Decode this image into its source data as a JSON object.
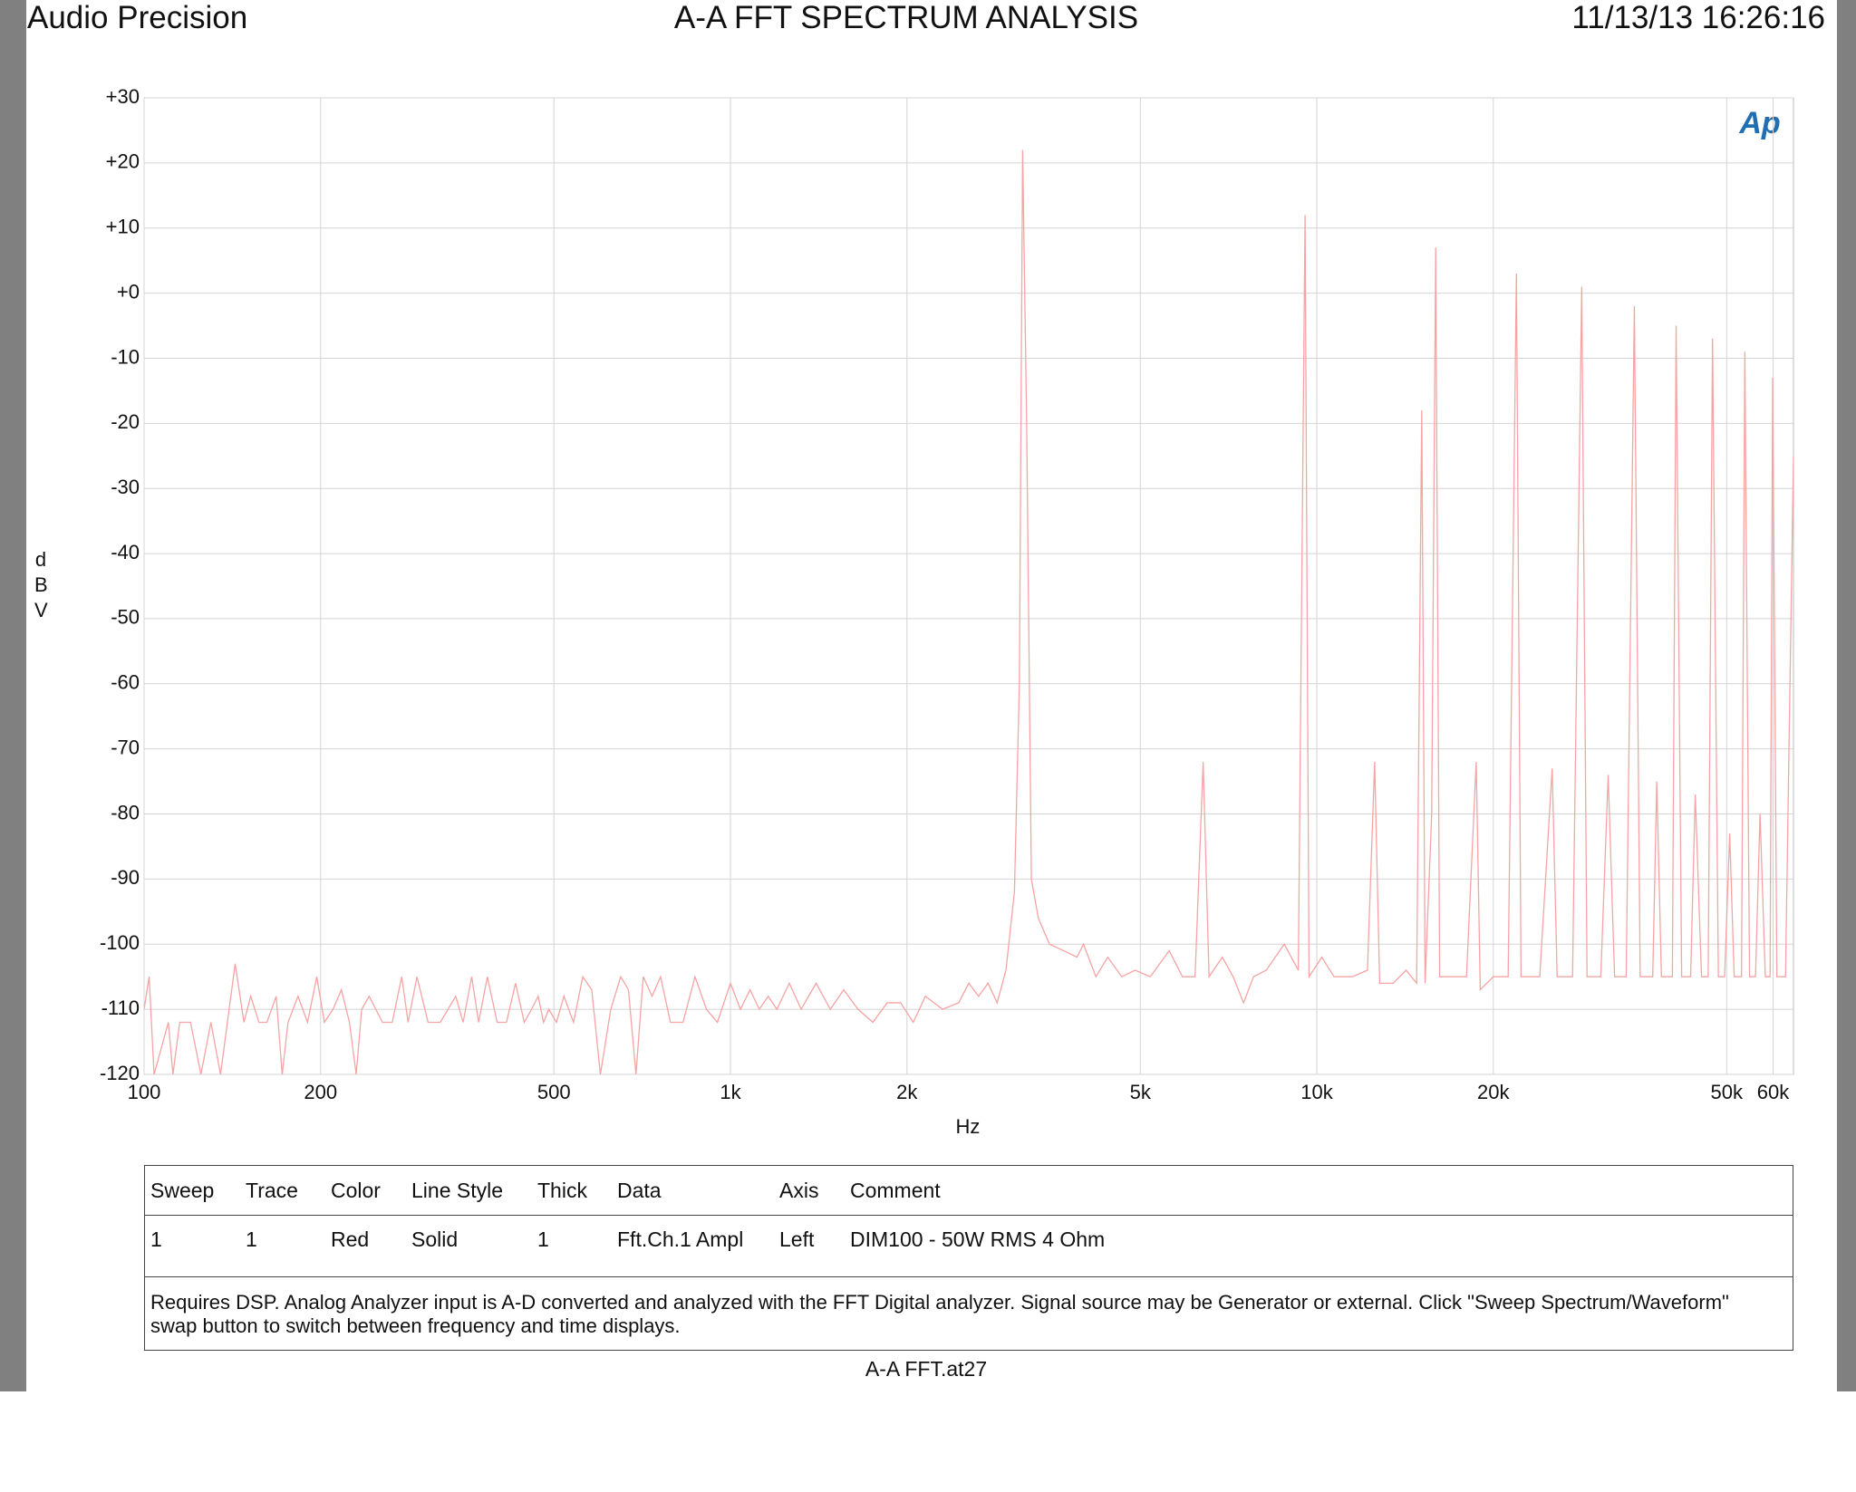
{
  "header": {
    "left": "Audio Precision",
    "title": "A-A FFT SPECTRUM ANALYSIS",
    "timestamp": "11/13/13 16:26:16"
  },
  "chart_data": {
    "type": "line",
    "logo": "Ap",
    "xlabel": "Hz",
    "ylabel": "dBV",
    "xscale": "log",
    "grid": true,
    "color": "#f6a3a3",
    "xlim": [
      100,
      65000
    ],
    "ylim": [
      -120,
      30
    ],
    "xticks": [
      100,
      200,
      500,
      {
        "value": 1000,
        "label": "1k"
      },
      {
        "value": 2000,
        "label": "2k"
      },
      {
        "value": 5000,
        "label": "5k"
      },
      {
        "value": 10000,
        "label": "10k"
      },
      {
        "value": 20000,
        "label": "20k"
      },
      {
        "value": 50000,
        "label": "50k"
      },
      {
        "value": 60000,
        "label": "60k"
      }
    ],
    "yticks": [
      {
        "value": 30,
        "label": "+30"
      },
      {
        "value": 20,
        "label": "+20"
      },
      {
        "value": 10,
        "label": "+10"
      },
      {
        "value": 0,
        "label": "+0"
      },
      -10,
      -20,
      -30,
      -40,
      -50,
      -60,
      -70,
      -80,
      -90,
      -100,
      -110,
      -120
    ],
    "x": [
      100,
      102,
      104,
      110,
      112,
      115,
      120,
      125,
      130,
      135,
      143,
      148,
      152,
      157,
      162,
      168,
      172,
      176,
      183,
      190,
      197,
      203,
      210,
      217,
      224,
      230,
      235,
      242,
      255,
      265,
      275,
      282,
      292,
      305,
      320,
      340,
      350,
      362,
      372,
      385,
      400,
      415,
      430,
      445,
      458,
      470,
      480,
      490,
      505,
      520,
      540,
      560,
      580,
      600,
      625,
      650,
      670,
      690,
      710,
      735,
      760,
      790,
      830,
      870,
      910,
      950,
      1000,
      1040,
      1080,
      1120,
      1160,
      1200,
      1260,
      1320,
      1400,
      1480,
      1560,
      1650,
      1750,
      1850,
      1950,
      2050,
      2150,
      2300,
      2450,
      2550,
      2650,
      2750,
      2850,
      2950,
      3050,
      3110,
      3150,
      3200,
      3260,
      3350,
      3500,
      3700,
      3900,
      4000,
      4200,
      4400,
      4650,
      4900,
      5200,
      5600,
      5900,
      6200,
      6400,
      6550,
      6900,
      7200,
      7500,
      7800,
      8200,
      8800,
      9300,
      9550,
      9700,
      10200,
      10700,
      11500,
      12200,
      12550,
      12800,
      13500,
      14200,
      14800,
      15100,
      15300,
      15700,
      15950,
      16200,
      17000,
      18000,
      18700,
      19000,
      20000,
      21200,
      21900,
      22300,
      24000,
      25200,
      25700,
      27300,
      28300,
      28900,
      30500,
      31400,
      32200,
      33700,
      34800,
      35600,
      37400,
      38000,
      38700,
      40400,
      41000,
      41900,
      43400,
      44200,
      45300,
      46500,
      47300,
      48400,
      49600,
      50600,
      51500,
      53000,
      53700,
      54700,
      56000,
      57000,
      58200,
      59300,
      59900,
      60900,
      63000,
      65000
    ],
    "values": [
      -110,
      -105,
      -120,
      -112,
      -120,
      -112,
      -112,
      -120,
      -112,
      -120,
      -103,
      -112,
      -108,
      -112,
      -112,
      -108,
      -120,
      -112,
      -108,
      -112,
      -105,
      -112,
      -110,
      -107,
      -112,
      -120,
      -110,
      -108,
      -112,
      -112,
      -105,
      -112,
      -105,
      -112,
      -112,
      -108,
      -112,
      -105,
      -112,
      -105,
      -112,
      -112,
      -106,
      -112,
      -110,
      -108,
      -112,
      -110,
      -112,
      -108,
      -112,
      -105,
      -107,
      -120,
      -110,
      -105,
      -107,
      -120,
      -105,
      -108,
      -105,
      -112,
      -112,
      -105,
      -110,
      -112,
      -106,
      -110,
      -107,
      -110,
      -108,
      -110,
      -106,
      -110,
      -106,
      -110,
      -107,
      -110,
      -112,
      -109,
      -109,
      -112,
      -108,
      -110,
      -109,
      -106,
      -108,
      -106,
      -109,
      -104,
      -92,
      -60,
      22,
      -20,
      -90,
      -96,
      -100,
      -101,
      -102,
      -100,
      -105,
      -102,
      -105,
      -104,
      -105,
      -101,
      -105,
      -105,
      -72,
      -105,
      -102,
      -105,
      -109,
      -105,
      -104,
      -100,
      -104,
      12,
      -105,
      -102,
      -105,
      -105,
      -104,
      -72,
      -106,
      -106,
      -104,
      -106,
      -18,
      -106,
      -80,
      7,
      -105,
      -105,
      -105,
      -72,
      -107,
      -105,
      -105,
      3,
      -105,
      -105,
      -73,
      -105,
      -105,
      1,
      -105,
      -105,
      -74,
      -105,
      -105,
      -2,
      -105,
      -105,
      -75,
      -105,
      -105,
      -5,
      -105,
      -105,
      -77,
      -105,
      -105,
      -7,
      -105,
      -105,
      -83,
      -105,
      -105,
      -9,
      -105,
      -105,
      -80,
      -105,
      -105,
      -13,
      -105,
      -105,
      -25
    ]
  },
  "table": {
    "headers": [
      "Sweep",
      "Trace",
      "Color",
      "Line Style",
      "Thick",
      "Data",
      "Axis",
      "Comment"
    ],
    "rows": [
      [
        "1",
        "1",
        "Red",
        "Solid",
        "1",
        "Fft.Ch.1 Ampl",
        "Left",
        "DIM100 - 50W RMS 4 Ohm"
      ]
    ],
    "note": "Requires DSP.  Analog Analyzer input is A-D converted and analyzed with the FFT Digital analyzer.  Signal source may be Generator or external.  Click \"Sweep Spectrum/Waveform\" swap button to switch between frequency and time displays."
  },
  "footer": "A-A FFT.at27"
}
